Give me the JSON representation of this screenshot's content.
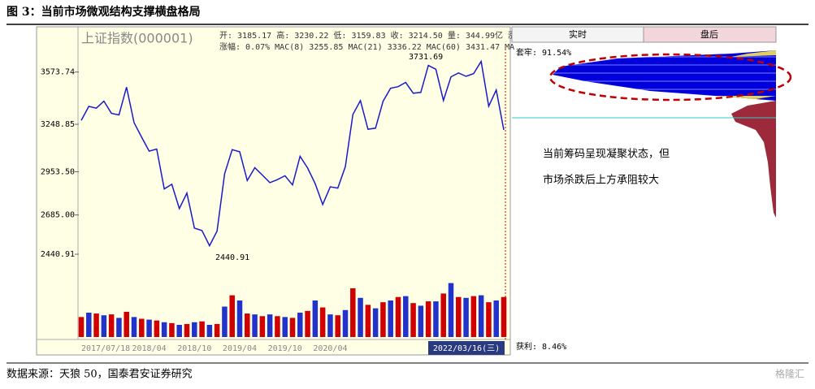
{
  "chart_data": {
    "type": "line",
    "title": "图 3：当前市场微观结构支撑横盘格局",
    "source": "数据来源：天狼 50，国泰君安证券研究",
    "watermark": "格隆汇",
    "panel_title": "上证指数(000001)",
    "info_line_1": "开: 3185.17 高: 3230.22 低: 3159.83 收: 3214.50 量: 344.99亿 涨",
    "info_line_2": "涨幅: 0.07% MAC(8) 3255.85 MAC(21) 3336.22 MAC(60) 3431.47 MA",
    "annotations": [
      "3731.69",
      "2440.91"
    ],
    "date_box": "2022/03/16(三)",
    "tabs": [
      "实时",
      "盘后"
    ],
    "trapped": "套牢: 91.54%",
    "profit": "获利: 8.46%",
    "notes": [
      "当前筹码呈现凝聚状态，但",
      "市场杀跌后上方承阻较大"
    ],
    "categories": [
      "2017/07/18",
      null,
      null,
      null,
      null,
      null,
      null,
      null,
      null,
      "2018/04",
      null,
      null,
      null,
      null,
      null,
      "2018/10",
      null,
      null,
      null,
      null,
      null,
      "2019/04",
      null,
      null,
      null,
      null,
      null,
      "2019/10",
      null,
      null,
      null,
      null,
      null,
      "2020/04",
      null,
      null,
      null,
      null,
      null,
      null,
      null,
      null,
      null,
      null,
      null,
      null,
      null,
      null,
      null,
      null,
      null,
      null,
      null,
      null,
      null,
      null,
      null
    ],
    "series": [
      {
        "name": "上证指数",
        "color": "#1a1acc",
        "values": [
          3273,
          3360,
          3349,
          3393,
          3317,
          3307,
          3480,
          3259,
          3169,
          3082,
          3095,
          2847,
          2876,
          2725,
          2821,
          2603,
          2588,
          2494,
          2585,
          2941,
          3091,
          3078,
          2899,
          2979,
          2933,
          2886,
          2905,
          2929,
          2872,
          3050,
          2977,
          2880,
          2750,
          2860,
          2852,
          2985,
          3310,
          3396,
          3218,
          3225,
          3392,
          3473,
          3483,
          3509,
          3442,
          3447,
          3615,
          3591,
          3397,
          3544,
          3568,
          3547,
          3564,
          3640,
          3361,
          3462,
          3214
        ]
      },
      {
        "name": "量",
        "color": "#d00000",
        "axis": "y2",
        "values": [
          2300,
          2800,
          2700,
          2500,
          2600,
          2200,
          2900,
          2300,
          2100,
          2000,
          1900,
          1700,
          1600,
          1400,
          1500,
          1700,
          1800,
          1400,
          1500,
          3500,
          4800,
          4200,
          2700,
          2600,
          2400,
          2600,
          2400,
          2300,
          2200,
          2800,
          3000,
          4200,
          3400,
          2600,
          2500,
          3100,
          5600,
          4500,
          3700,
          3300,
          4000,
          4200,
          4600,
          4700,
          3900,
          3600,
          4100,
          4100,
          5000,
          6200,
          4600,
          4500,
          4700,
          4800,
          4000,
          4200,
          4600
        ]
      }
    ],
    "ylim": [
      2320,
      3855
    ],
    "yticks": [
      {
        "value": 3573.74,
        "label": "3573.74"
      },
      {
        "value": 3248.85,
        "label": "3248.85"
      },
      {
        "value": 2953.5,
        "label": "2953.50"
      },
      {
        "value": 2685,
        "label": "2685.00"
      },
      {
        "value": 2440.91,
        "label": "2440.91"
      }
    ],
    "y2lim": [
      0,
      7000
    ],
    "grid": false
  }
}
